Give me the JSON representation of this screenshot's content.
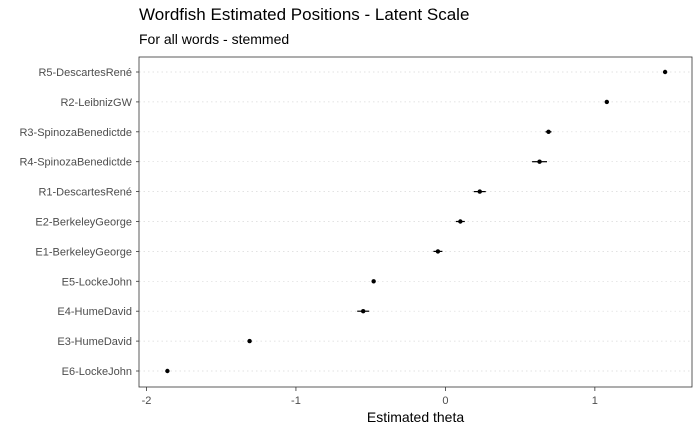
{
  "chart_data": {
    "type": "scatter",
    "title": "Wordfish Estimated Positions - Latent Scale",
    "subtitle": "For all words - stemmed",
    "xlabel": "Estimated theta",
    "ylabel": "",
    "xlim": [
      -2.05,
      1.65
    ],
    "xticks": [
      -2,
      -1,
      0,
      1
    ],
    "xtick_labels": [
      "-2",
      "-1",
      "0",
      "1"
    ],
    "grid": "dotted horizontal lines at each category",
    "categories": [
      "R5-DescartesRené",
      "R2-LeibnizGW",
      "R3-SpinozaBenedictde",
      "R4-SpinozaBenedictde",
      "R1-DescartesRené",
      "E2-BerkeleyGeorge",
      "E1-BerkeleyGeorge",
      "E5-LockeJohn",
      "E4-HumeDavid",
      "E3-HumeDavid",
      "E6-LockeJohn"
    ],
    "values": [
      1.47,
      1.08,
      0.69,
      0.63,
      0.23,
      0.1,
      -0.05,
      -0.48,
      -0.55,
      -1.31,
      -1.86
    ],
    "ci_lower": [
      1.46,
      1.07,
      0.67,
      0.58,
      0.19,
      0.07,
      -0.08,
      -0.49,
      -0.59,
      -1.32,
      -1.87
    ],
    "ci_upper": [
      1.48,
      1.09,
      0.71,
      0.68,
      0.27,
      0.13,
      -0.02,
      -0.47,
      -0.51,
      -1.3,
      -1.85
    ],
    "colors": {
      "point": "#000000",
      "grid": "#d9d9d9",
      "border": "#333333",
      "axis_text": "#4d4d4d"
    }
  }
}
